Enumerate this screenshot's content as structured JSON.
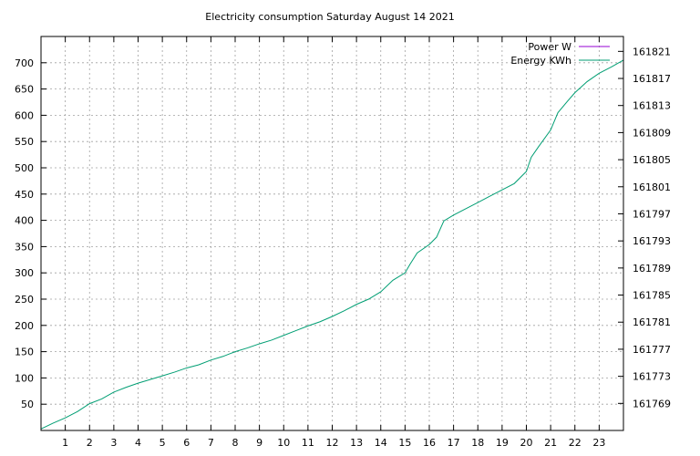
{
  "chart_data": {
    "type": "line",
    "title": "Electricity consumption Saturday August 14 2021",
    "xlabel": "",
    "ylabel": "",
    "y2label": "",
    "xlim": [
      0,
      24
    ],
    "ylim": [
      0,
      750
    ],
    "y2lim": [
      161765.0,
      161823.2
    ],
    "x_ticks": [
      1,
      2,
      3,
      4,
      5,
      6,
      7,
      8,
      9,
      10,
      11,
      12,
      13,
      14,
      15,
      16,
      17,
      18,
      19,
      20,
      21,
      22,
      23
    ],
    "y_ticks": [
      50,
      100,
      150,
      200,
      250,
      300,
      350,
      400,
      450,
      500,
      550,
      600,
      650,
      700
    ],
    "y2_ticks": [
      161769,
      161773,
      161777,
      161781,
      161785,
      161789,
      161793,
      161797,
      161801,
      161805,
      161809,
      161813,
      161817,
      161821
    ],
    "grid": true,
    "legend_position": "top-right",
    "series": [
      {
        "name": "Power W",
        "axis": "y",
        "color": "#9400d3",
        "x": [],
        "values": []
      },
      {
        "name": "Energy KWh",
        "axis": "y",
        "color": "#009e73",
        "x": [
          0,
          0.5,
          1,
          1.5,
          2,
          2.5,
          3,
          3.5,
          4,
          4.5,
          5,
          5.5,
          6,
          6.5,
          7,
          7.5,
          8,
          8.5,
          9,
          9.5,
          10,
          10.5,
          11,
          11.5,
          12,
          12.5,
          13,
          13.5,
          14,
          14.5,
          15,
          15.2,
          15.5,
          16,
          16.3,
          16.6,
          17,
          17.5,
          18,
          18.5,
          19,
          19.5,
          20,
          20.2,
          20.5,
          21,
          21.3,
          21.7,
          22,
          22.5,
          23,
          23.5,
          24
        ],
        "values": [
          3,
          14,
          24,
          36,
          51,
          60,
          73,
          82,
          90,
          97,
          104,
          111,
          119,
          125,
          134,
          141,
          150,
          157,
          165,
          172,
          181,
          190,
          199,
          207,
          217,
          228,
          240,
          250,
          264,
          286,
          300,
          316,
          338,
          354,
          368,
          399,
          410,
          422,
          434,
          446,
          458,
          470,
          493,
          520,
          540,
          572,
          605,
          627,
          643,
          664,
          680,
          692,
          705
        ]
      }
    ]
  }
}
